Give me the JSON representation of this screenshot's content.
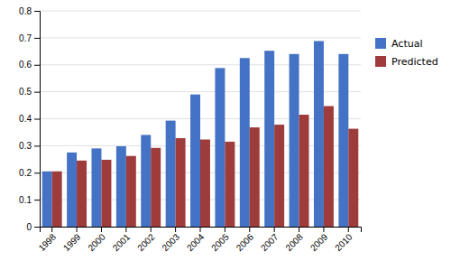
{
  "chart_data": {
    "type": "bar",
    "categories": [
      "1998",
      "1999",
      "2000",
      "2001",
      "2002",
      "2003",
      "2004",
      "2005",
      "2006",
      "2007",
      "2008",
      "2009",
      "2010"
    ],
    "series": [
      {
        "name": "Actual",
        "color": "#4472C4",
        "values": [
          0.205,
          0.275,
          0.29,
          0.298,
          0.34,
          0.393,
          0.49,
          0.588,
          0.625,
          0.652,
          0.64,
          0.688,
          0.64
        ]
      },
      {
        "name": "Predicted",
        "color": "#9E3B3B",
        "values": [
          0.205,
          0.245,
          0.248,
          0.262,
          0.292,
          0.328,
          0.323,
          0.315,
          0.368,
          0.378,
          0.415,
          0.447,
          0.363
        ]
      }
    ],
    "ylim": [
      0,
      0.8
    ],
    "yticks": [
      0,
      0.1,
      0.2,
      0.3,
      0.4,
      0.5,
      0.6,
      0.7,
      0.8
    ],
    "grid": true,
    "legend": "right"
  }
}
